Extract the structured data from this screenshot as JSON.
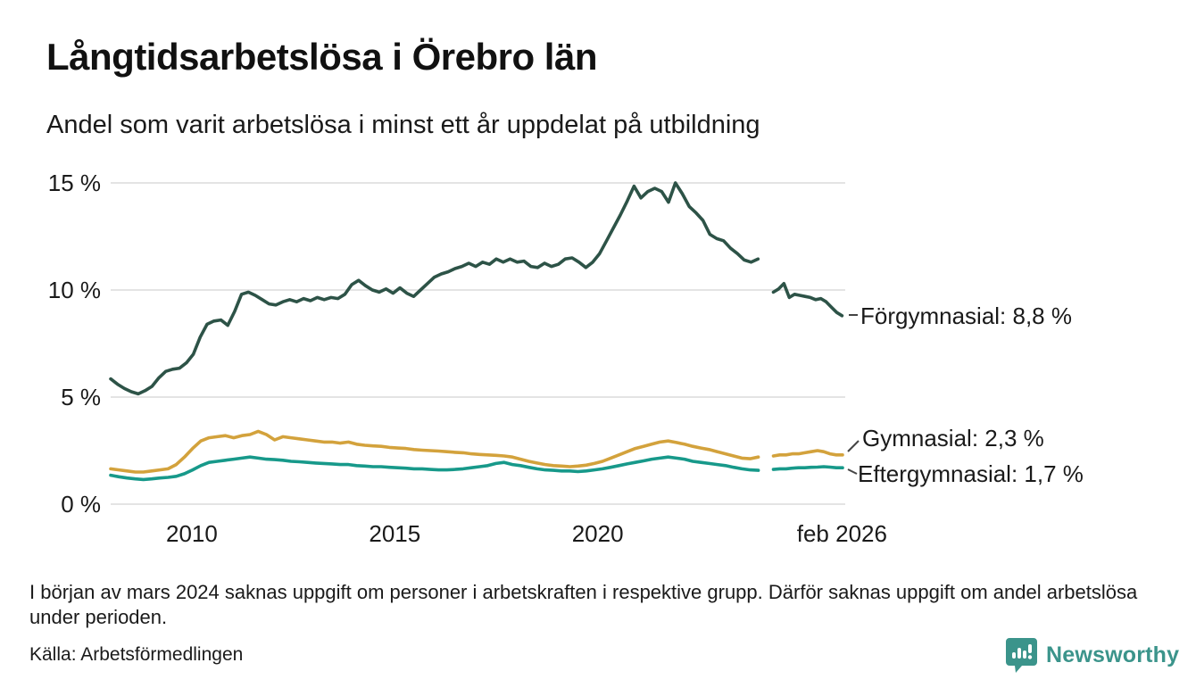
{
  "header": {
    "title": "Långtidsarbetslösa i Örebro län",
    "subtitle": "Andel som varit arbetslösa i minst ett år uppdelat på utbildning"
  },
  "chart_data": {
    "type": "line",
    "title": "Långtidsarbetslösa i Örebro län",
    "subtitle": "Andel som varit arbetslösa i minst ett år uppdelat på utbildning",
    "unit": "%",
    "x_unit": "year (monthly series)",
    "xlim": [
      2008.0,
      2026.1
    ],
    "ylim": [
      0,
      15
    ],
    "grid": "horizontal gridlines only, light gray",
    "legend_position": "labels at right end of each line",
    "y_ticks": [
      {
        "value": 0,
        "label": "0 %"
      },
      {
        "value": 5,
        "label": "5 %"
      },
      {
        "value": 10,
        "label": "10 %"
      },
      {
        "value": 15,
        "label": "15 %"
      }
    ],
    "x_ticks": [
      {
        "value": 2010,
        "label": "2010"
      },
      {
        "value": 2015,
        "label": "2015"
      },
      {
        "value": 2020,
        "label": "2020"
      },
      {
        "value": 2026.02,
        "label": "feb 2026"
      }
    ],
    "data_gap": "no data from early March 2024 for a period (visible break in all three lines around 2024)",
    "grid_color": "#e4e4e4",
    "series": [
      {
        "name": "Förgymnasial",
        "end_label": "Förgymnasial: 8,8 %",
        "end_value": 8.8,
        "color": "#2d5347",
        "segments": [
          {
            "x_start": 2008.0,
            "x_step": 0.1697,
            "values": [
              5.85,
              5.6,
              5.4,
              5.25,
              5.15,
              5.3,
              5.5,
              5.9,
              6.2,
              6.3,
              6.35,
              6.6,
              7.0,
              7.8,
              8.4,
              8.55,
              8.6,
              8.35,
              9.0,
              9.8,
              9.9,
              9.75,
              9.55,
              9.35,
              9.3,
              9.45,
              9.55,
              9.45,
              9.6,
              9.5,
              9.65,
              9.55,
              9.65,
              9.6,
              9.8,
              10.25,
              10.45,
              10.2,
              10.0,
              9.9,
              10.05,
              9.85,
              10.1,
              9.85,
              9.7,
              10.0,
              10.3,
              10.6,
              10.75,
              10.85,
              11.0,
              11.1,
              11.25,
              11.1,
              11.3,
              11.2,
              11.45,
              11.3,
              11.45,
              11.3,
              11.35,
              11.1,
              11.05,
              11.25,
              11.1,
              11.2,
              11.45,
              11.5,
              11.3,
              11.05,
              11.3,
              11.7,
              12.3,
              12.9,
              13.5,
              14.15,
              14.85,
              14.3,
              14.6,
              14.75,
              14.6,
              14.1,
              15.0,
              14.5,
              13.9,
              13.6,
              13.25,
              12.6,
              12.4,
              12.3,
              11.95,
              11.7,
              11.4,
              11.3,
              11.45
            ]
          },
          {
            "x_start": 2024.33,
            "x_step": 0.13,
            "values": [
              9.9,
              10.05,
              10.3,
              9.65,
              9.8,
              9.75,
              9.7,
              9.65,
              9.55,
              9.6,
              9.45,
              9.2,
              8.95,
              8.8
            ]
          }
        ]
      },
      {
        "name": "Gymnasial",
        "end_label": "Gymnasial: 2,3 %",
        "end_value": 2.3,
        "color": "#d3a23c",
        "segments": [
          {
            "x_start": 2008.0,
            "x_step": 0.202,
            "values": [
              1.65,
              1.6,
              1.55,
              1.5,
              1.5,
              1.55,
              1.6,
              1.65,
              1.85,
              2.2,
              2.6,
              2.95,
              3.1,
              3.15,
              3.2,
              3.1,
              3.2,
              3.25,
              3.4,
              3.25,
              3.0,
              3.15,
              3.1,
              3.05,
              3.0,
              2.95,
              2.9,
              2.9,
              2.85,
              2.9,
              2.8,
              2.75,
              2.72,
              2.7,
              2.65,
              2.62,
              2.6,
              2.55,
              2.52,
              2.5,
              2.48,
              2.45,
              2.42,
              2.4,
              2.35,
              2.32,
              2.3,
              2.28,
              2.25,
              2.2,
              2.1,
              2.0,
              1.92,
              1.85,
              1.8,
              1.78,
              1.75,
              1.78,
              1.82,
              1.9,
              2.0,
              2.15,
              2.3,
              2.45,
              2.6,
              2.7,
              2.8,
              2.9,
              2.95,
              2.88,
              2.8,
              2.7,
              2.62,
              2.55,
              2.45,
              2.35,
              2.25,
              2.15,
              2.12,
              2.2
            ]
          },
          {
            "x_start": 2024.33,
            "x_step": 0.155,
            "values": [
              2.25,
              2.3,
              2.3,
              2.35,
              2.35,
              2.4,
              2.45,
              2.5,
              2.45,
              2.35,
              2.3,
              2.3
            ]
          }
        ]
      },
      {
        "name": "Eftergymnasial",
        "end_label": "Eftergymnasial: 1,7 %",
        "end_value": 1.7,
        "color": "#17998a",
        "segments": [
          {
            "x_start": 2008.0,
            "x_step": 0.202,
            "values": [
              1.35,
              1.28,
              1.22,
              1.18,
              1.15,
              1.18,
              1.22,
              1.25,
              1.3,
              1.42,
              1.6,
              1.8,
              1.95,
              2.0,
              2.05,
              2.1,
              2.15,
              2.2,
              2.15,
              2.1,
              2.08,
              2.05,
              2.0,
              1.98,
              1.95,
              1.92,
              1.9,
              1.88,
              1.85,
              1.85,
              1.8,
              1.78,
              1.75,
              1.75,
              1.72,
              1.7,
              1.68,
              1.65,
              1.65,
              1.62,
              1.6,
              1.6,
              1.62,
              1.65,
              1.7,
              1.75,
              1.8,
              1.9,
              1.95,
              1.85,
              1.8,
              1.72,
              1.65,
              1.6,
              1.58,
              1.55,
              1.55,
              1.52,
              1.55,
              1.6,
              1.65,
              1.72,
              1.8,
              1.88,
              1.95,
              2.02,
              2.1,
              2.15,
              2.2,
              2.15,
              2.1,
              2.0,
              1.95,
              1.9,
              1.85,
              1.8,
              1.72,
              1.65,
              1.6,
              1.58
            ]
          },
          {
            "x_start": 2024.33,
            "x_step": 0.155,
            "values": [
              1.62,
              1.65,
              1.65,
              1.68,
              1.7,
              1.7,
              1.72,
              1.73,
              1.75,
              1.73,
              1.7,
              1.7
            ]
          }
        ]
      }
    ]
  },
  "footer": {
    "note": "I början av mars 2024 saknas uppgift om personer i arbetskraften i respektive grupp. Därför saknas uppgift om andel arbetslösa under perioden.",
    "source": "Källa: Arbetsförmedlingen"
  },
  "logo": {
    "text": "Newsworthy",
    "color": "#3b948b",
    "icon": "newsworthy-speech-bubble-bar-chart-icon"
  }
}
